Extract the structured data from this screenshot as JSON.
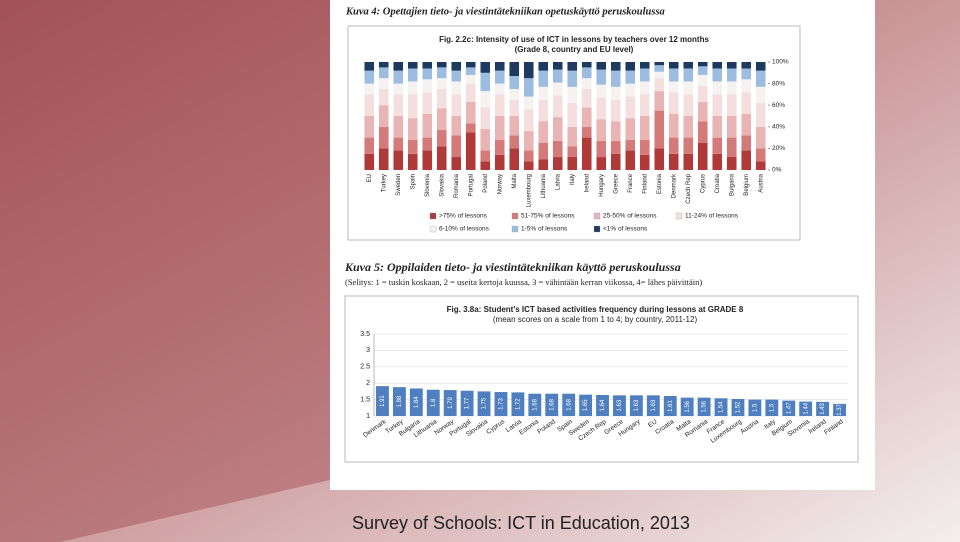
{
  "slide": {
    "caption": "Survey of Schools: ICT in Education, 2013"
  },
  "chart_data": [
    {
      "type": "stacked_bar",
      "heading": "Kuva 4: Opettajien tieto- ja viestintätekniikan opetuskäyttö peruskoulussa",
      "title": "Fig. 2.2c: Intensity of use of ICT in lessons by teachers over 12 months",
      "subtitle": "(Grade 8, country and EU level)",
      "categories": [
        "EU",
        "Turkey",
        "Sweden",
        "Spain",
        "Slovenia",
        "Slovakia",
        "Romania",
        "Portugal",
        "Poland",
        "Norway",
        "Malta",
        "Luxembourg",
        "Lithuania",
        "Latvia",
        "Italy",
        "Ireland",
        "Hungary",
        "Greece",
        "France",
        "Finland",
        "Estonia",
        "Denmark",
        "Czech Rep",
        "Cyprus",
        "Croatia",
        "Bulgaria",
        "Belgium",
        "Austria"
      ],
      "series": [
        {
          "name": ">75% of lessons",
          "color": "#b03a3a",
          "values": [
            15,
            20,
            18,
            15,
            18,
            22,
            12,
            35,
            8,
            14,
            20,
            8,
            10,
            12,
            12,
            30,
            12,
            15,
            18,
            14,
            20,
            15,
            15,
            25,
            15,
            12,
            18,
            8
          ]
        },
        {
          "name": "51-75% of lessons",
          "color": "#d47a7a",
          "values": [
            15,
            20,
            12,
            13,
            12,
            15,
            20,
            8,
            10,
            14,
            12,
            10,
            15,
            15,
            10,
            10,
            15,
            12,
            10,
            14,
            35,
            15,
            15,
            20,
            15,
            18,
            14,
            12
          ]
        },
        {
          "name": "25-50% of lessons",
          "color": "#e8b4b4",
          "values": [
            20,
            20,
            20,
            20,
            22,
            20,
            18,
            20,
            20,
            22,
            18,
            18,
            20,
            22,
            18,
            18,
            20,
            18,
            20,
            22,
            18,
            22,
            20,
            18,
            20,
            20,
            20,
            20
          ]
        },
        {
          "name": "11-24% of lessons",
          "color": "#f4dede",
          "values": [
            20,
            15,
            20,
            22,
            20,
            18,
            20,
            17,
            20,
            20,
            15,
            20,
            20,
            20,
            22,
            17,
            20,
            20,
            20,
            20,
            12,
            20,
            20,
            15,
            20,
            20,
            20,
            22
          ]
        },
        {
          "name": "6-10% of lessons",
          "color": "#f7f2f2",
          "values": [
            10,
            10,
            10,
            12,
            12,
            10,
            12,
            8,
            15,
            10,
            10,
            12,
            12,
            12,
            15,
            10,
            12,
            12,
            12,
            12,
            6,
            10,
            12,
            10,
            12,
            12,
            12,
            15
          ]
        },
        {
          "name": "1-5% of lessons",
          "color": "#9dbde0",
          "values": [
            12,
            10,
            12,
            12,
            10,
            10,
            10,
            7,
            17,
            12,
            12,
            17,
            15,
            12,
            15,
            10,
            14,
            15,
            12,
            12,
            6,
            12,
            12,
            8,
            12,
            12,
            10,
            15
          ]
        },
        {
          "name": "<1% of lessons",
          "color": "#1f3a5f",
          "values": [
            8,
            5,
            8,
            6,
            6,
            5,
            8,
            5,
            10,
            8,
            13,
            15,
            8,
            7,
            8,
            5,
            7,
            8,
            8,
            6,
            3,
            6,
            6,
            4,
            6,
            6,
            6,
            8
          ]
        }
      ],
      "ylim": [
        0,
        100
      ],
      "yticks": [
        {
          "value": 0,
          "label": "0%"
        },
        {
          "value": 20,
          "label": "20%"
        },
        {
          "value": 40,
          "label": "40%"
        },
        {
          "value": 60,
          "label": "60%"
        },
        {
          "value": 80,
          "label": "80%"
        },
        {
          "value": 100,
          "label": "100%"
        }
      ]
    },
    {
      "type": "bar",
      "heading": "Kuva 5: Oppilaiden tieto- ja viestintätekniikan käyttö peruskoulussa",
      "note": "(Selitys: 1 = tuskin koskaan, 2 = useita kertoja kuussa, 3 = vähintään kerran viikossa, 4= lähes päivittäin)",
      "title": "Fig. 3.8a: Student's ICT based activities frequency during lessons at GRADE 8",
      "subtitle": "(mean scores on a scale from 1 to 4; by country, 2011-12)",
      "categories": [
        "Denmark",
        "Turkey",
        "Bulgaria",
        "Lithuania",
        "Norway",
        "Portugal",
        "Slovakia",
        "Cyprus",
        "Latvia",
        "Estonia",
        "Poland",
        "Spain",
        "Sweden",
        "Czech Rep",
        "Greece",
        "Hungary",
        "EU",
        "Croatia",
        "Malta",
        "Romania",
        "France",
        "Luxembourg",
        "Austria",
        "Italy",
        "Belgium",
        "Slovenia",
        "Ireland",
        "Finland"
      ],
      "values": [
        1.91,
        1.88,
        1.84,
        1.8,
        1.79,
        1.77,
        1.75,
        1.73,
        1.72,
        1.68,
        1.68,
        1.68,
        1.65,
        1.64,
        1.63,
        1.63,
        1.63,
        1.61,
        1.56,
        1.56,
        1.54,
        1.52,
        1.5,
        1.5,
        1.47,
        1.44,
        1.43,
        1.37
      ],
      "color": "#4f7fbf",
      "ylim": [
        1,
        3.5
      ],
      "yticks": [
        1,
        1.5,
        2,
        2.5,
        3,
        3.5
      ],
      "grid": true
    }
  ]
}
